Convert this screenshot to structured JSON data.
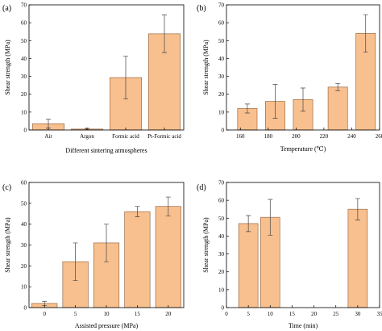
{
  "colors": {
    "bar_fill": "#F9C08F",
    "bar_edge": "#9A6B46",
    "axis": "#000000"
  },
  "chart_data": [
    {
      "panel": "(a)",
      "type": "bar",
      "categories": [
        "Air",
        "Argon",
        "Formic acid",
        "Pt-Formic acid"
      ],
      "values": [
        3.5,
        0.5,
        29.3,
        53.8
      ],
      "errors": [
        2.5,
        0.4,
        12.0,
        10.5
      ],
      "xlabel": "Different sintering atmospheres",
      "ylabel": "Shear strength (MPa)",
      "ylim": [
        0,
        70
      ],
      "yticks": [
        0,
        10,
        20,
        30,
        40,
        50,
        60,
        70
      ],
      "grid": false
    },
    {
      "panel": "(b)",
      "type": "bar",
      "x": [
        165,
        185,
        205,
        230,
        250
      ],
      "values": [
        12.0,
        16.0,
        17.0,
        24.0,
        54.0
      ],
      "errors": [
        2.5,
        9.5,
        6.5,
        2.0,
        10.5
      ],
      "bar_width": 14,
      "xlabel": "Temperature (℃)",
      "ylabel": "Shear strength (MPa)",
      "xlim": [
        150,
        260
      ],
      "xticks": [
        160,
        180,
        200,
        220,
        240,
        260
      ],
      "ylim": [
        0,
        70
      ],
      "yticks": [
        0,
        10,
        20,
        30,
        40,
        50,
        60,
        70
      ],
      "grid": false
    },
    {
      "panel": "(c)",
      "type": "bar",
      "categories": [
        "0",
        "5",
        "10",
        "15",
        "20"
      ],
      "values": [
        2.0,
        22.0,
        31.0,
        46.0,
        48.5
      ],
      "errors": [
        1.0,
        9.0,
        9.0,
        2.5,
        4.5
      ],
      "xlabel": "Assisted pressure (MPa)",
      "ylabel": "Shear strength (MPa)",
      "ylim": [
        0,
        60
      ],
      "yticks": [
        0,
        10,
        20,
        30,
        40,
        50,
        60
      ],
      "grid": false
    },
    {
      "panel": "(d)",
      "type": "bar",
      "x": [
        5,
        10,
        30
      ],
      "values": [
        47.0,
        50.5,
        55.0
      ],
      "errors": [
        4.5,
        10.0,
        6.0
      ],
      "xlabel": "Time (min)",
      "ylabel": "Shear strength (MPa)",
      "xlim": [
        0,
        35
      ],
      "xticks": [
        0,
        5,
        10,
        15,
        20,
        25,
        30,
        35
      ],
      "ylim": [
        0,
        70
      ],
      "yticks": [
        0,
        10,
        20,
        30,
        40,
        50,
        60,
        70
      ],
      "grid": false
    }
  ]
}
